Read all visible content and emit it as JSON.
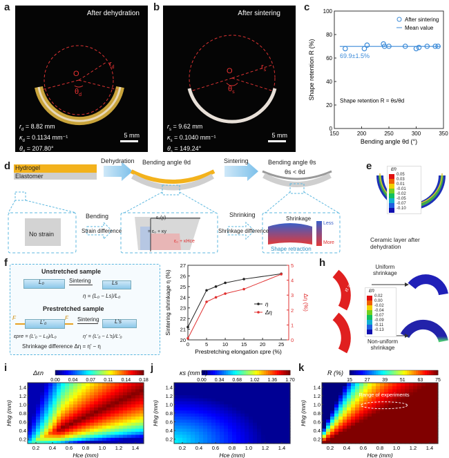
{
  "panels": {
    "a": {
      "label": "a",
      "title": "After dehydration",
      "lines": [
        "r d = 8.82 mm",
        "κd = 0.1134 mm⁻¹",
        "θd = 207.80°"
      ],
      "r_label": "r",
      "r_sub": "d",
      "k_label": "κ",
      "k_sub": "d",
      "k_val": " = 0.1134 mm⁻¹",
      "r_val": " = 8.82 mm",
      "t_label": "θ",
      "t_sub": "d",
      "t_val": " = 207.80°",
      "center": "O",
      "angle": "θ",
      "angle_sub": "d",
      "radius": "r",
      "radius_sub": "d",
      "scalebar": "5 mm"
    },
    "b": {
      "label": "b",
      "title": "After sintering",
      "r_label": "r",
      "r_sub": "s",
      "r_val": " = 9.62 mm",
      "k_label": "κ",
      "k_sub": "s",
      "k_val": " = 0.1040 mm⁻¹",
      "t_label": "θ",
      "t_sub": "s",
      "t_val": " = 149.24°",
      "center": "O",
      "angle": "θ",
      "angle_sub": "s",
      "radius": "r",
      "radius_sub": "s",
      "scalebar": "5 mm"
    },
    "c": {
      "label": "c",
      "legend": [
        "After sintering",
        "Mean value"
      ],
      "annotation": "69.9±1.5%",
      "formula": "Shape retention R = θs/θd"
    },
    "d": {
      "label": "d",
      "hydrogel": "Hydrogel",
      "elastomer": "Elastomer",
      "dehydration": "Dehydration",
      "bending_angle_d": "Bending angle θd",
      "sintering": "Sintering",
      "bending_angle_s": "Bending angle θs",
      "theta_rel": "θs < θd",
      "no_strain": "No strain",
      "bending": "Bending",
      "strain_diff": "Strain difference",
      "shrinking": "Shrinking",
      "shrink_diff": "Shrinkage difference",
      "shrinkage": "Shrinkage",
      "less": "Less",
      "more": "More",
      "shape_retraction": "Shape retraction",
      "eps_y": "ε₀(y)",
      "eps_eq": "= ε₀ + κy",
      "eps_eq2": "ε₀ + κHce",
      "x": "x",
      "y": "y",
      "o": "O"
    },
    "e": {
      "label": "e",
      "cbar_title": "εn",
      "ticks": [
        "0.05",
        "0.03",
        "0.01",
        "-0.01",
        "-0.02",
        "-0.05",
        "-0.07",
        "-0.10"
      ],
      "caption": "Ceramic layer after dehydration"
    },
    "f": {
      "label": "f",
      "unstretched": "Unstretched sample",
      "l0": "L₀",
      "sintering1": "Sintering",
      "ls": "Ls",
      "eta": "η = (L₀ − Ls)/L₀",
      "prestretched": "Prestretched sample",
      "F": "F",
      "l0p": "L′₀",
      "sintering2": "Sintering",
      "lsp": "L′s",
      "epre": "εpre = (L′₀ − L₀)/L₀",
      "etap": "η′ = (L′₀ − L′s)/L′₀",
      "diff": "Shrinkage difference  Δη = η′ − η"
    },
    "h": {
      "label": "h",
      "uniform": "Uniform\nshrinkage",
      "uniform1": "Uniform",
      "uniform2": "shrinkage",
      "nonuniform1": "Non-uniform",
      "nonuniform2": "shrinkage",
      "cbar_title": "εn",
      "ticks": [
        "0.02",
        "0.00",
        "-0.02",
        "-0.04",
        "-0.07",
        "-0.09",
        "-0.11",
        "-0.13"
      ],
      "eq": "εt = εn"
    },
    "i": {
      "label": "i",
      "cbar_title": "Δεn",
      "ticks": [
        "0.00",
        "0.04",
        "0.07",
        "0.11",
        "0.14",
        "0.18"
      ]
    },
    "j": {
      "label": "j",
      "cbar_title": "κs (mm⁻¹)",
      "ticks": [
        "0.00",
        "0.34",
        "0.68",
        "1.02",
        "1.36",
        "1.70"
      ]
    },
    "k": {
      "label": "k",
      "cbar_title": "R (%)",
      "ticks": [
        "15",
        "27",
        "39",
        "51",
        "63",
        "75"
      ],
      "annotation": "Range of experiments"
    }
  },
  "chart_data": [
    {
      "id": "c",
      "type": "scatter",
      "title": "",
      "xlabel": "Bending angle θd (°)",
      "ylabel": "Shape retention R (%)",
      "xlim": [
        150,
        350
      ],
      "ylim": [
        0,
        100
      ],
      "xticks": [
        150,
        200,
        250,
        300,
        350
      ],
      "yticks": [
        0,
        20,
        40,
        60,
        80,
        100
      ],
      "series": [
        {
          "name": "After sintering",
          "x": [
            170,
            205,
            210,
            240,
            242,
            250,
            280,
            300,
            305,
            320,
            335,
            340
          ],
          "y": [
            68,
            68,
            71,
            72,
            70,
            70,
            70,
            68,
            69,
            70,
            70,
            70
          ]
        },
        {
          "name": "Mean value",
          "x": [
            160,
            345
          ],
          "y": [
            69.9,
            69.9
          ]
        }
      ],
      "legend": "top-right"
    },
    {
      "id": "g",
      "type": "line",
      "xlabel": "Prestretching elongation εpre (%)",
      "ylabel": "Sintering shrinkage η (%)",
      "ylabel2": "Δη (%)",
      "xlim": [
        0,
        27
      ],
      "ylim": [
        20,
        27
      ],
      "ylim2": [
        0,
        5
      ],
      "xticks": [
        0,
        5,
        10,
        15,
        20,
        25
      ],
      "yticks": [
        20,
        21,
        22,
        23,
        24,
        25,
        26,
        27
      ],
      "yticks2": [
        0,
        1,
        2,
        3,
        4,
        5
      ],
      "x": [
        0,
        5,
        7.5,
        10,
        15,
        25
      ],
      "series": [
        {
          "name": "η",
          "y": [
            21.2,
            24.65,
            25.0,
            25.35,
            25.7,
            26.2
          ],
          "axis": "left",
          "color": "#222222"
        },
        {
          "name": "Δη",
          "y": [
            0.1,
            2.55,
            2.85,
            3.1,
            3.4,
            4.4
          ],
          "axis": "right",
          "color": "#e03030"
        }
      ],
      "legend": "center-right"
    },
    {
      "id": "i",
      "type": "heatmap",
      "xlabel": "Hce (mm)",
      "ylabel": "Hhg (mm)",
      "xticks": [
        0.2,
        0.4,
        0.6,
        0.8,
        1.0,
        1.2,
        1.4
      ],
      "yticks": [
        0.2,
        0.4,
        0.6,
        0.8,
        1.0,
        1.2,
        1.4
      ],
      "zlim": [
        0,
        0.18
      ],
      "zlabel": "Δεn"
    },
    {
      "id": "j",
      "type": "heatmap",
      "xlabel": "Hce (mm)",
      "ylabel": "Hhg (mm)",
      "xticks": [
        0.2,
        0.4,
        0.6,
        0.8,
        1.0,
        1.2,
        1.4
      ],
      "yticks": [
        0.2,
        0.4,
        0.6,
        0.8,
        1.0,
        1.2,
        1.4
      ],
      "zlim": [
        0,
        1.7
      ],
      "zlabel": "κs (mm⁻¹)"
    },
    {
      "id": "k",
      "type": "heatmap",
      "xlabel": "Hce (mm)",
      "ylabel": "Hhg (mm)",
      "xticks": [
        0.2,
        0.4,
        0.6,
        0.8,
        1.0,
        1.2,
        1.4
      ],
      "yticks": [
        0.2,
        0.4,
        0.6,
        0.8,
        1.0,
        1.2,
        1.4
      ],
      "zlim": [
        15,
        75
      ],
      "zlabel": "R (%)"
    }
  ]
}
